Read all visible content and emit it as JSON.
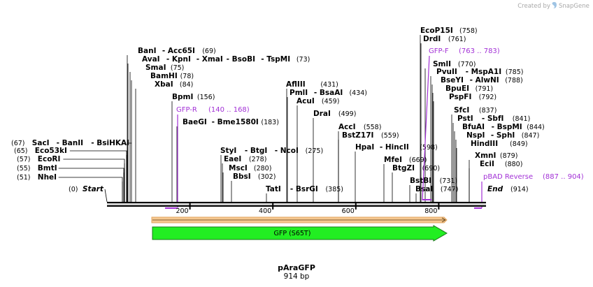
{
  "credit": {
    "text": "Created by",
    "brand": "SnapGene"
  },
  "plasmid": {
    "name": "pAraGFP",
    "length_label": "914 bp"
  },
  "colors": {
    "primer": "#a230d6",
    "feature_fill": "#22ee22",
    "feature_stroke": "#1a7a1a",
    "orf_fill": "#f6c891",
    "orf_stroke": "#e1a560"
  },
  "ends": {
    "start_pos": "(0)",
    "start_label": "Start",
    "end_label": "End",
    "end_pos": "(914)"
  },
  "ticks": [
    "200",
    "400",
    "600",
    "800"
  ],
  "sites": [
    {
      "pre": "(67)",
      "names": [
        "SacI",
        "BanII",
        "BsiHKAI"
      ],
      "post": ""
    },
    {
      "pre": "(65)",
      "names": [
        "Eco53kI"
      ],
      "post": ""
    },
    {
      "pre": "(57)",
      "names": [
        "EcoRI"
      ],
      "post": ""
    },
    {
      "pre": "(55)",
      "names": [
        "BmtI"
      ],
      "post": ""
    },
    {
      "pre": "(51)",
      "names": [
        "NheI"
      ],
      "post": ""
    },
    {
      "pre": "",
      "names": [
        "BanI",
        "Acc65I"
      ],
      "post": "(69)"
    },
    {
      "pre": "",
      "names": [
        "AvaI",
        "KpnI",
        "XmaI",
        "BsoBI",
        "TspMI"
      ],
      "post": "(73)"
    },
    {
      "pre": "",
      "names": [
        "SmaI"
      ],
      "post": "(75)"
    },
    {
      "pre": "",
      "names": [
        "BamHI"
      ],
      "post": "(78)"
    },
    {
      "pre": "",
      "names": [
        "XbaI"
      ],
      "post": "(84)"
    },
    {
      "pre": "",
      "names": [
        "BpmI"
      ],
      "post": "(156)"
    },
    {
      "pre": "",
      "names": [
        "BaeGI",
        "Bme1580I"
      ],
      "post": "(183)"
    },
    {
      "pre": "",
      "names": [
        "StyI",
        "BtgI",
        "NcoI"
      ],
      "post": "(275)"
    },
    {
      "pre": "",
      "names": [
        "EaeI"
      ],
      "post": "(278)"
    },
    {
      "pre": "",
      "names": [
        "MscI"
      ],
      "post": "(280)"
    },
    {
      "pre": "",
      "names": [
        "BbsI"
      ],
      "post": "(302)"
    },
    {
      "pre": "",
      "names": [
        "AflIII"
      ],
      "post": "(431)"
    },
    {
      "pre": "",
      "names": [
        "PmlI",
        "BsaAI"
      ],
      "post": "(434)"
    },
    {
      "pre": "",
      "names": [
        "AcuI"
      ],
      "post": "(459)"
    },
    {
      "pre": "",
      "names": [
        "DraI"
      ],
      "post": "(499)"
    },
    {
      "pre": "",
      "names": [
        "TatI",
        "BsrGI"
      ],
      "post": "(385)"
    },
    {
      "pre": "",
      "names": [
        "AccI"
      ],
      "post": "(558)"
    },
    {
      "pre": "",
      "names": [
        "BstZ17I"
      ],
      "post": "(559)"
    },
    {
      "pre": "",
      "names": [
        "HpaI",
        "HincII"
      ],
      "post": "(598)"
    },
    {
      "pre": "",
      "names": [
        "MfeI"
      ],
      "post": "(669)"
    },
    {
      "pre": "",
      "names": [
        "BtgZI"
      ],
      "post": "(690)"
    },
    {
      "pre": "",
      "names": [
        "BstBI"
      ],
      "post": "(731)"
    },
    {
      "pre": "",
      "names": [
        "BsaI"
      ],
      "post": "(747)"
    },
    {
      "pre": "",
      "names": [
        "EcoP15I"
      ],
      "post": "(758)"
    },
    {
      "pre": "",
      "names": [
        "DrdI"
      ],
      "post": "(761)"
    },
    {
      "pre": "",
      "names": [
        "SmlI"
      ],
      "post": "(770)"
    },
    {
      "pre": "",
      "names": [
        "PvuII",
        "MspA1I"
      ],
      "post": "(785)"
    },
    {
      "pre": "",
      "names": [
        "BseYI",
        "AlwNI"
      ],
      "post": "(788)"
    },
    {
      "pre": "",
      "names": [
        "BpuEI"
      ],
      "post": "(791)"
    },
    {
      "pre": "",
      "names": [
        "PspFI"
      ],
      "post": "(792)"
    },
    {
      "pre": "",
      "names": [
        "SfcI"
      ],
      "post": "(837)"
    },
    {
      "pre": "",
      "names": [
        "PstI",
        "SbfI"
      ],
      "post": "(841)"
    },
    {
      "pre": "",
      "names": [
        "BfuAI",
        "BspMI"
      ],
      "post": "(844)"
    },
    {
      "pre": "",
      "names": [
        "NspI",
        "SphI"
      ],
      "post": "(847)"
    },
    {
      "pre": "",
      "names": [
        "HindIII"
      ],
      "post": "(849)"
    },
    {
      "pre": "",
      "names": [
        "XmnI"
      ],
      "post": "(879)"
    },
    {
      "pre": "",
      "names": [
        "EciI"
      ],
      "post": "(880)"
    }
  ],
  "primers": [
    {
      "name": "GFP-R",
      "range": "(140 .. 168)"
    },
    {
      "name": "GFP-F",
      "range": "(763 .. 783)"
    },
    {
      "name": "pBAD Reverse",
      "range": "(887 .. 904)"
    }
  ],
  "features": [
    {
      "name": "GFP (S65T)"
    }
  ]
}
